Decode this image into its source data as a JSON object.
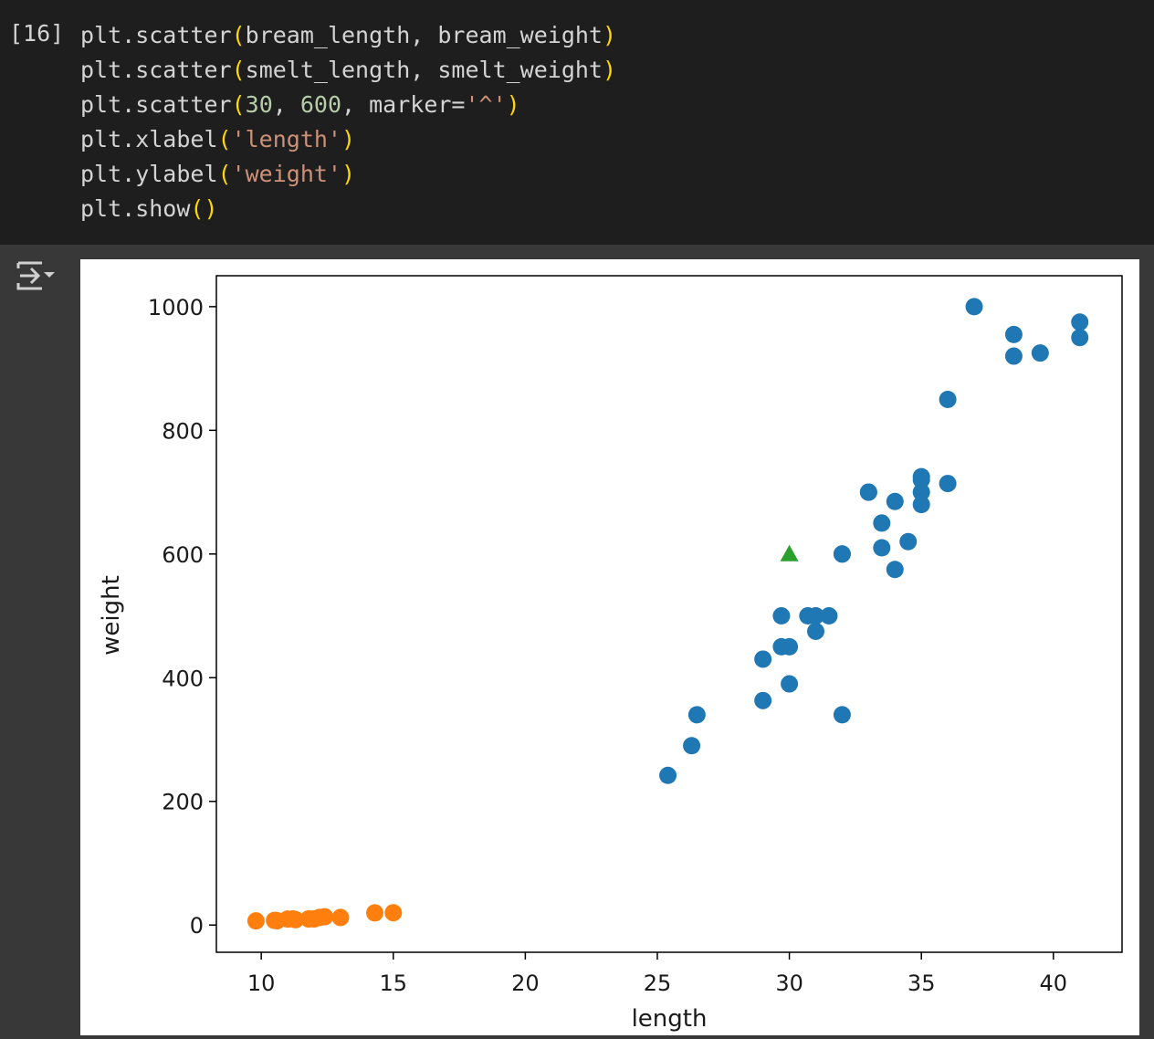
{
  "cell": {
    "execution_count": "[16]",
    "code_lines": [
      [
        {
          "t": "plt.scatter"
        },
        {
          "t": "(",
          "c": "p"
        },
        {
          "t": "bream_length, bream_weight"
        },
        {
          "t": ")",
          "c": "p"
        }
      ],
      [
        {
          "t": "plt.scatter"
        },
        {
          "t": "(",
          "c": "p"
        },
        {
          "t": "smelt_length, smelt_weight"
        },
        {
          "t": ")",
          "c": "p"
        }
      ],
      [
        {
          "t": "plt.scatter"
        },
        {
          "t": "(",
          "c": "p"
        },
        {
          "t": "30",
          "c": "n"
        },
        {
          "t": ", "
        },
        {
          "t": "600",
          "c": "n"
        },
        {
          "t": ", marker="
        },
        {
          "t": "'^'",
          "c": "s"
        },
        {
          "t": ")",
          "c": "p"
        }
      ],
      [
        {
          "t": "plt.xlabel"
        },
        {
          "t": "(",
          "c": "p"
        },
        {
          "t": "'length'",
          "c": "s"
        },
        {
          "t": ")",
          "c": "p"
        }
      ],
      [
        {
          "t": "plt.ylabel"
        },
        {
          "t": "(",
          "c": "p"
        },
        {
          "t": "'weight'",
          "c": "s"
        },
        {
          "t": ")",
          "c": "p"
        }
      ],
      [
        {
          "t": "plt.show"
        },
        {
          "t": "()",
          "c": "p"
        }
      ]
    ]
  },
  "output": {
    "icon": "output-collapse-icon"
  },
  "chart_data": {
    "type": "scatter",
    "xlabel": "length",
    "ylabel": "weight",
    "xlim": [
      8.3,
      42.6
    ],
    "ylim": [
      -44,
      1050
    ],
    "xticks": [
      10,
      15,
      20,
      25,
      30,
      35,
      40
    ],
    "yticks": [
      0,
      200,
      400,
      600,
      800,
      1000
    ],
    "grid": false,
    "series": [
      {
        "marker": "circle",
        "color": "#1f77b4",
        "x": [
          25.4,
          26.3,
          26.5,
          29.0,
          29.0,
          29.7,
          29.7,
          30.0,
          30.0,
          30.7,
          31.0,
          31.0,
          31.5,
          32.0,
          32.0,
          32.0,
          33.0,
          33.0,
          33.5,
          33.5,
          34.0,
          34.0,
          34.5,
          35.0,
          35.0,
          35.0,
          35.0,
          36.0,
          36.0,
          37.0,
          38.5,
          38.5,
          39.5,
          41.0,
          41.0
        ],
        "y": [
          242,
          290,
          340,
          363,
          430,
          450,
          500,
          390,
          450,
          500,
          475,
          500,
          500,
          340,
          600,
          600,
          700,
          700,
          610,
          650,
          575,
          685,
          620,
          680,
          700,
          725,
          720,
          714,
          850,
          1000,
          920,
          955,
          925,
          975,
          950
        ]
      },
      {
        "marker": "circle",
        "color": "#ff7f0e",
        "x": [
          9.8,
          10.5,
          10.6,
          11.0,
          11.2,
          11.3,
          11.8,
          11.8,
          12.0,
          12.2,
          12.4,
          13.0,
          14.3,
          15.0
        ],
        "y": [
          6.7,
          7.5,
          7.0,
          9.7,
          9.8,
          8.7,
          10.0,
          9.9,
          9.8,
          12.2,
          13.4,
          12.2,
          19.7,
          19.9
        ]
      },
      {
        "marker": "triangle-up",
        "color": "#2ca02c",
        "x": [
          30
        ],
        "y": [
          600
        ]
      }
    ]
  }
}
